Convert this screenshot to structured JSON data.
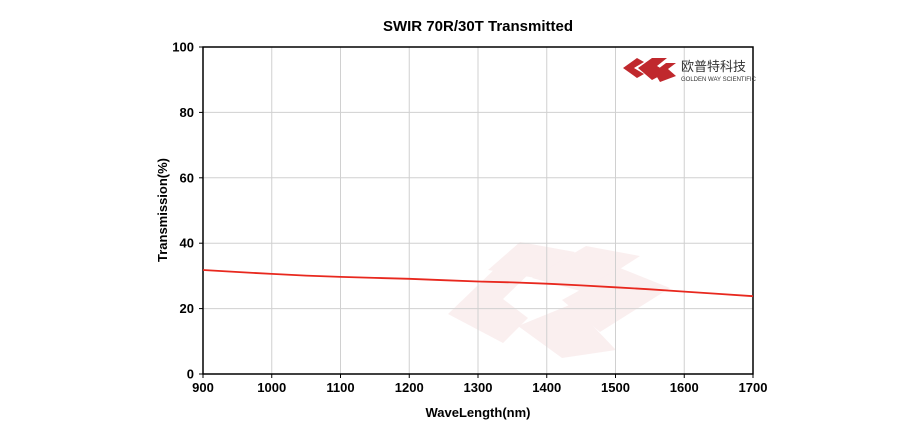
{
  "logo": {
    "name_cn": "欧普特科技",
    "name_en": "GOLDEN WAY SCIENTIFIC",
    "color": "#c0282d"
  },
  "chart_data": {
    "type": "line",
    "title": "SWIR 70R/30T Transmitted",
    "xlabel": "WaveLength(nm)",
    "ylabel": "Transmission(%)",
    "xlim": [
      900,
      1700
    ],
    "ylim": [
      0,
      100
    ],
    "xticks": [
      900,
      1000,
      1100,
      1200,
      1300,
      1400,
      1500,
      1600,
      1700
    ],
    "yticks": [
      0,
      20,
      40,
      60,
      80,
      100
    ],
    "grid": true,
    "series": [
      {
        "color": "#e8281e",
        "x": [
          900,
          950,
          1000,
          1050,
          1100,
          1150,
          1200,
          1250,
          1300,
          1350,
          1400,
          1450,
          1500,
          1550,
          1600,
          1650,
          1700
        ],
        "y": [
          31.8,
          31.2,
          30.6,
          30.1,
          29.7,
          29.4,
          29.1,
          28.7,
          28.3,
          28.0,
          27.6,
          27.1,
          26.5,
          25.9,
          25.2,
          24.5,
          23.8
        ]
      }
    ]
  }
}
